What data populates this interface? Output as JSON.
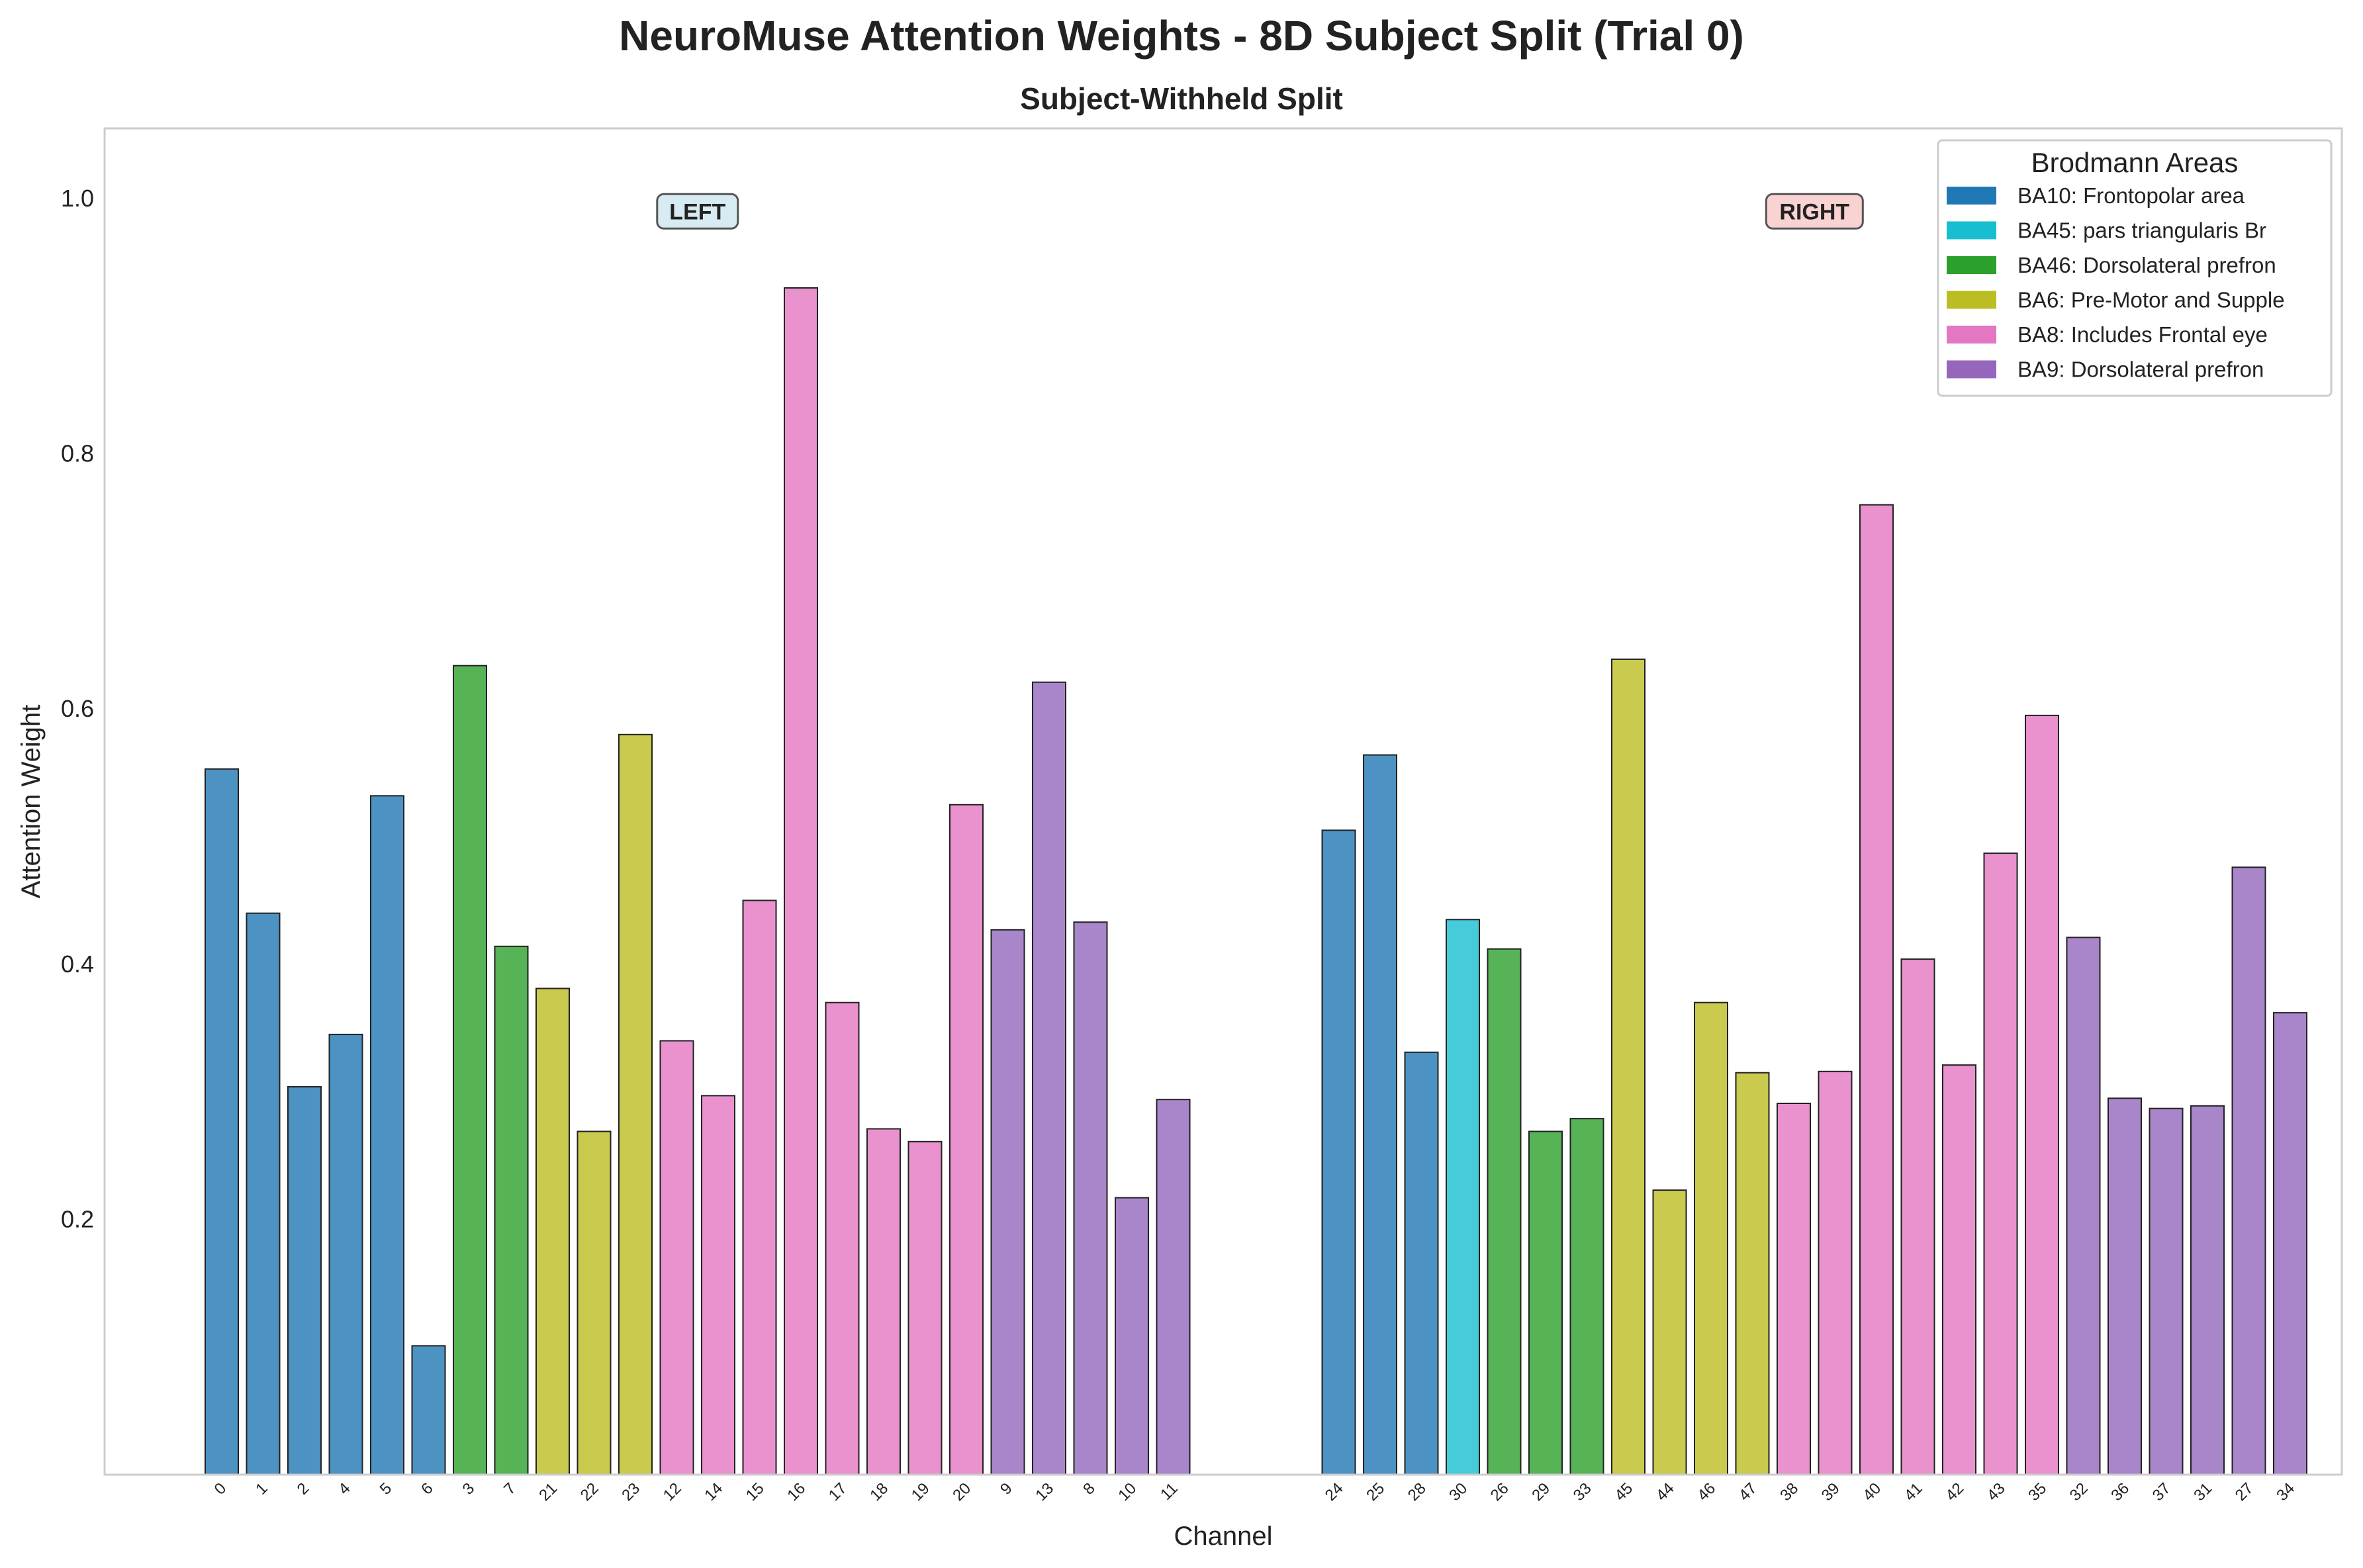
{
  "chart_data": {
    "type": "bar",
    "title": "NeuroMuse Attention Weights - 8D Subject Split (Trial 0)",
    "subtitle": "Subject-Withheld Split",
    "xlabel": "Channel",
    "ylabel": "Attention Weight",
    "ylim": [
      0.0,
      1.055
    ],
    "yticks": [
      "0.2",
      "0.4",
      "0.6",
      "0.8",
      "1.0"
    ],
    "grid": false,
    "legend": {
      "title": "Brodmann Areas",
      "placement": "top-right",
      "entries": [
        {
          "key": "BA10",
          "label": "BA10: Frontopolar area",
          "color": "#1f77b4"
        },
        {
          "key": "BA45",
          "label": "BA45: pars triangularis Br",
          "color": "#17becf"
        },
        {
          "key": "BA46",
          "label": "BA46: Dorsolateral prefron",
          "color": "#2ca02c"
        },
        {
          "key": "BA6",
          "label": "BA6: Pre-Motor and Supple",
          "color": "#bcbd22"
        },
        {
          "key": "BA8",
          "label": "BA8: Includes Frontal eye",
          "color": "#e377c2"
        },
        {
          "key": "BA9",
          "label": "BA9: Dorsolateral prefron",
          "color": "#9467bd"
        }
      ]
    },
    "hemispheres": [
      {
        "label": "LEFT",
        "color": "#add8e6",
        "bars": [
          {
            "channel": "0",
            "area": "BA10",
            "value": 0.553
          },
          {
            "channel": "1",
            "area": "BA10",
            "value": 0.44
          },
          {
            "channel": "2",
            "area": "BA10",
            "value": 0.304
          },
          {
            "channel": "4",
            "area": "BA10",
            "value": 0.345
          },
          {
            "channel": "5",
            "area": "BA10",
            "value": 0.532
          },
          {
            "channel": "6",
            "area": "BA10",
            "value": 0.101
          },
          {
            "channel": "3",
            "area": "BA46",
            "value": 0.634
          },
          {
            "channel": "7",
            "area": "BA46",
            "value": 0.414
          },
          {
            "channel": "21",
            "area": "BA6",
            "value": 0.381
          },
          {
            "channel": "22",
            "area": "BA6",
            "value": 0.269
          },
          {
            "channel": "23",
            "area": "BA6",
            "value": 0.58
          },
          {
            "channel": "12",
            "area": "BA8",
            "value": 0.34
          },
          {
            "channel": "14",
            "area": "BA8",
            "value": 0.297
          },
          {
            "channel": "15",
            "area": "BA8",
            "value": 0.45
          },
          {
            "channel": "16",
            "area": "BA8",
            "value": 0.93
          },
          {
            "channel": "17",
            "area": "BA8",
            "value": 0.37
          },
          {
            "channel": "18",
            "area": "BA8",
            "value": 0.271
          },
          {
            "channel": "19",
            "area": "BA8",
            "value": 0.261
          },
          {
            "channel": "20",
            "area": "BA8",
            "value": 0.525
          },
          {
            "channel": "9",
            "area": "BA9",
            "value": 0.427
          },
          {
            "channel": "13",
            "area": "BA9",
            "value": 0.621
          },
          {
            "channel": "8",
            "area": "BA9",
            "value": 0.433
          },
          {
            "channel": "10",
            "area": "BA9",
            "value": 0.217
          },
          {
            "channel": "11",
            "area": "BA9",
            "value": 0.294
          }
        ]
      },
      {
        "label": "RIGHT",
        "color": "#f4a6a6",
        "bars": [
          {
            "channel": "24",
            "area": "BA10",
            "value": 0.505
          },
          {
            "channel": "25",
            "area": "BA10",
            "value": 0.564
          },
          {
            "channel": "28",
            "area": "BA10",
            "value": 0.331
          },
          {
            "channel": "30",
            "area": "BA45",
            "value": 0.435
          },
          {
            "channel": "26",
            "area": "BA46",
            "value": 0.412
          },
          {
            "channel": "29",
            "area": "BA46",
            "value": 0.269
          },
          {
            "channel": "33",
            "area": "BA46",
            "value": 0.279
          },
          {
            "channel": "45",
            "area": "BA6",
            "value": 0.639
          },
          {
            "channel": "44",
            "area": "BA6",
            "value": 0.223
          },
          {
            "channel": "46",
            "area": "BA6",
            "value": 0.37
          },
          {
            "channel": "47",
            "area": "BA6",
            "value": 0.315
          },
          {
            "channel": "38",
            "area": "BA8",
            "value": 0.291
          },
          {
            "channel": "39",
            "area": "BA8",
            "value": 0.316
          },
          {
            "channel": "40",
            "area": "BA8",
            "value": 0.76
          },
          {
            "channel": "41",
            "area": "BA8",
            "value": 0.404
          },
          {
            "channel": "42",
            "area": "BA8",
            "value": 0.321
          },
          {
            "channel": "43",
            "area": "BA8",
            "value": 0.487
          },
          {
            "channel": "35",
            "area": "BA8",
            "value": 0.595
          },
          {
            "channel": "32",
            "area": "BA9",
            "value": 0.421
          },
          {
            "channel": "36",
            "area": "BA9",
            "value": 0.295
          },
          {
            "channel": "37",
            "area": "BA9",
            "value": 0.287
          },
          {
            "channel": "31",
            "area": "BA9",
            "value": 0.289
          },
          {
            "channel": "27",
            "area": "BA9",
            "value": 0.476
          },
          {
            "channel": "34",
            "area": "BA9",
            "value": 0.362
          }
        ]
      }
    ]
  }
}
